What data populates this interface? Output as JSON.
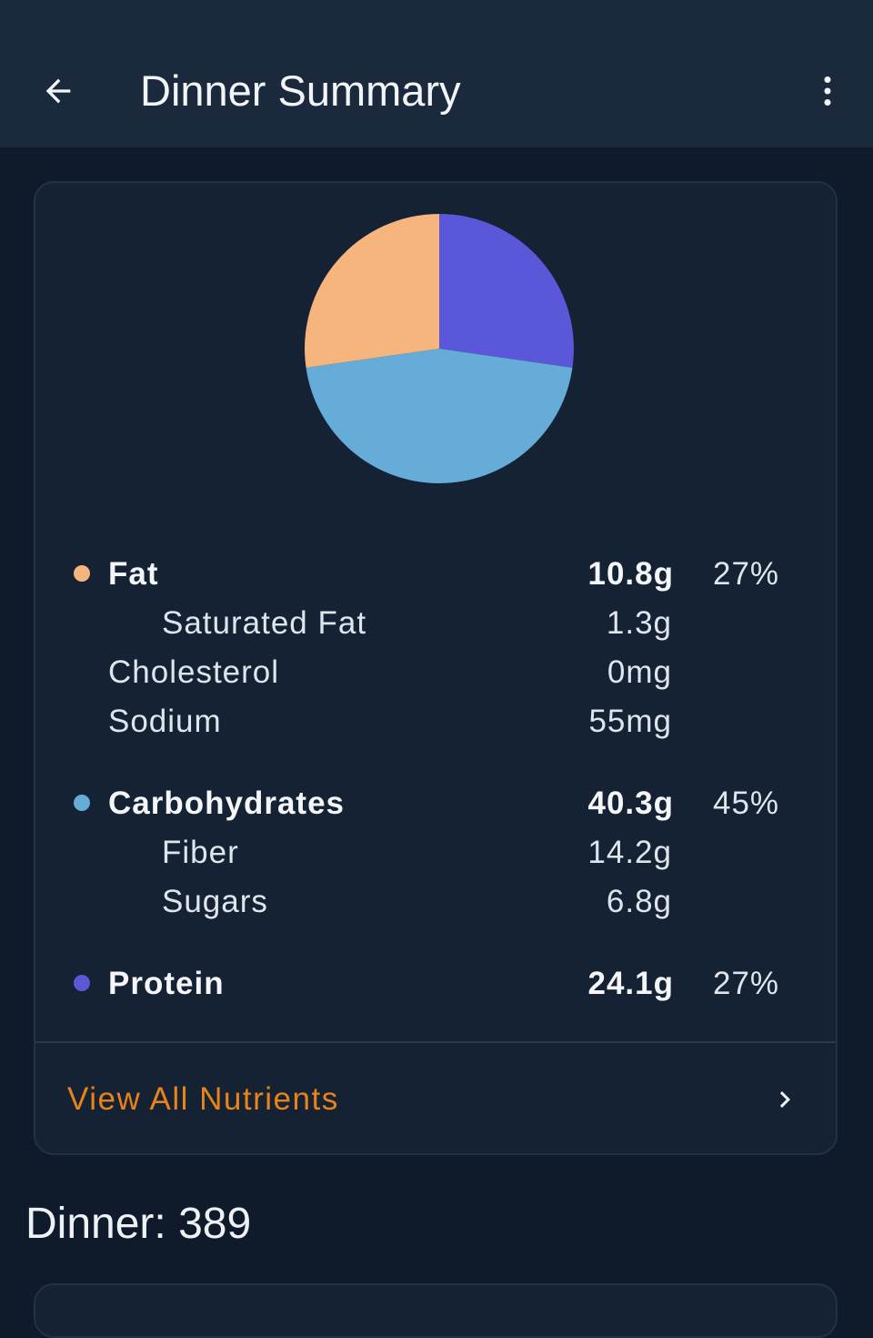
{
  "header": {
    "title": "Dinner Summary",
    "back_icon": "arrow-back-icon",
    "menu_icon": "more-vert-icon"
  },
  "chart_data": {
    "type": "pie",
    "slices": [
      {
        "name": "Protein",
        "value": 27,
        "color": "#5b57d9"
      },
      {
        "name": "Carbohydrates",
        "value": 45,
        "color": "#65acd9"
      },
      {
        "name": "Fat",
        "value": 27,
        "color": "#f5b57d"
      }
    ],
    "start": "top",
    "direction": "clockwise"
  },
  "nutrients": {
    "fat": {
      "label": "Fat",
      "amount": "10.8g",
      "percent": "27%",
      "color": "#f5b57d"
    },
    "saturated_fat": {
      "label": "Saturated Fat",
      "amount": "1.3g"
    },
    "cholesterol": {
      "label": "Cholesterol",
      "amount": "0mg"
    },
    "sodium": {
      "label": "Sodium",
      "amount": "55mg"
    },
    "carbohydrates": {
      "label": "Carbohydrates",
      "amount": "40.3g",
      "percent": "45%",
      "color": "#65acd9"
    },
    "fiber": {
      "label": "Fiber",
      "amount": "14.2g"
    },
    "sugars": {
      "label": "Sugars",
      "amount": "6.8g"
    },
    "protein": {
      "label": "Protein",
      "amount": "24.1g",
      "percent": "27%",
      "color": "#5b57d9"
    }
  },
  "view_all": {
    "label": "View All Nutrients",
    "color": "#e8831a",
    "icon": "chevron-right-icon"
  },
  "footer": {
    "label": "Dinner: 389"
  }
}
